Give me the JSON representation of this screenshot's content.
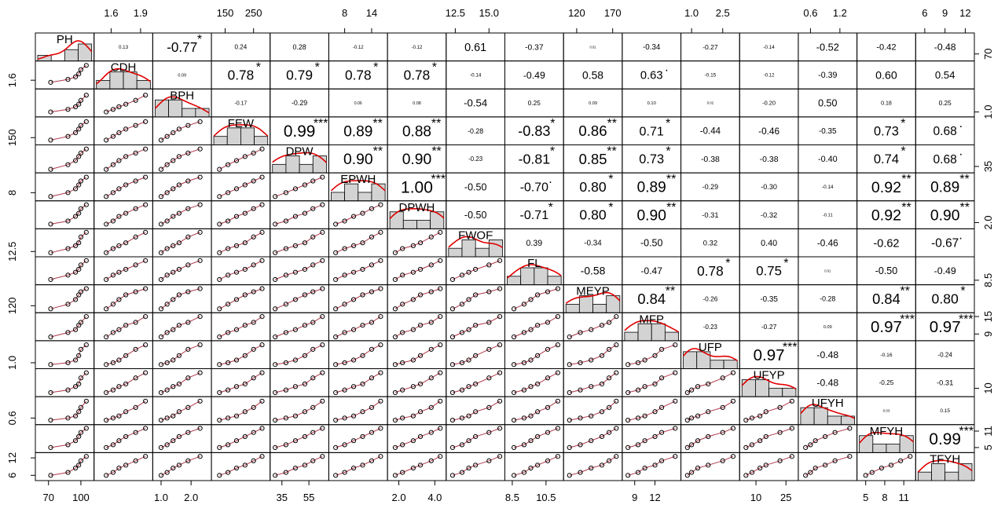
{
  "chart_data": {
    "type": "correlation-matrix",
    "variables": [
      {
        "name": "PH",
        "lim": [
          60,
          110
        ],
        "xticks": [
          70,
          100
        ],
        "yticks": [
          70
        ],
        "observations": [
          72,
          88,
          95,
          98,
          100,
          105
        ]
      },
      {
        "name": "CDH",
        "lim": [
          1.45,
          2.0
        ],
        "xticks": [
          1.6,
          1.9
        ],
        "yticks": [
          1.6
        ],
        "observations": [
          1.55,
          1.62,
          1.68,
          1.75,
          1.85,
          1.95
        ]
      },
      {
        "name": "BPH",
        "lim": [
          0.8,
          2.6
        ],
        "xticks": [
          {
            "value": 1,
            "label": "1.0"
          },
          {
            "value": 2,
            "label": "2.0"
          }
        ],
        "yticks": [
          {
            "value": 1,
            "label": "1.0"
          }
        ],
        "observations": [
          1.0,
          1.2,
          1.4,
          1.6,
          1.9,
          2.3
        ]
      },
      {
        "name": "FEW",
        "lim": [
          110,
          300
        ],
        "xticks": [
          150,
          250
        ],
        "yticks": [
          150
        ],
        "observations": [
          130,
          160,
          190,
          220,
          250,
          280
        ]
      },
      {
        "name": "DPW",
        "lim": [
          28,
          68
        ],
        "xticks": [
          35,
          55
        ],
        "yticks": [
          35
        ],
        "observations": [
          30,
          38,
          45,
          52,
          58,
          65
        ]
      },
      {
        "name": "EPWH",
        "lim": [
          5,
          17
        ],
        "xticks": [
          8,
          14
        ],
        "yticks": [
          8
        ],
        "observations": [
          6,
          8,
          10,
          12,
          14,
          16
        ]
      },
      {
        "name": "DPWH",
        "lim": [
          1.5,
          4.5
        ],
        "xticks": [
          {
            "value": 2,
            "label": "2.0"
          },
          {
            "value": 4,
            "label": "4.0"
          }
        ],
        "yticks": [
          {
            "value": 2,
            "label": "2.0"
          }
        ],
        "observations": [
          1.8,
          2.2,
          2.8,
          3.2,
          3.8,
          4.3
        ]
      },
      {
        "name": "FWOF",
        "lim": [
          12,
          16
        ],
        "xticks": [
          12.5,
          {
            "value": 15,
            "label": "15.0"
          }
        ],
        "yticks": [
          12.5
        ],
        "observations": [
          12.3,
          13.0,
          13.5,
          14.0,
          15.0,
          15.8
        ]
      },
      {
        "name": "FL",
        "lim": [
          8.2,
          11.4
        ],
        "xticks": [
          8.5,
          10.5
        ],
        "yticks": [
          8.5
        ],
        "observations": [
          8.6,
          9.2,
          9.6,
          10.0,
          10.6,
          11.2
        ]
      },
      {
        "name": "MEYP",
        "lim": [
          105,
          180
        ],
        "xticks": [
          120,
          170
        ],
        "yticks": [
          120
        ],
        "observations": [
          110,
          125,
          140,
          155,
          165,
          175
        ]
      },
      {
        "name": "MFP",
        "lim": [
          7.5,
          15.5
        ],
        "xticks": [
          9,
          12
        ],
        "yticks": [
          9,
          15
        ],
        "observations": [
          8,
          9.5,
          10.5,
          12,
          13,
          15
        ]
      },
      {
        "name": "UFP",
        "lim": [
          0.6,
          3.2
        ],
        "xticks": [
          {
            "value": 1,
            "label": "1.0"
          },
          2.5
        ],
        "yticks": [
          {
            "value": 1,
            "label": "1.0"
          }
        ],
        "observations": [
          0.8,
          1.0,
          1.3,
          1.8,
          2.5,
          3.0
        ]
      },
      {
        "name": "UFYP",
        "lim": [
          3,
          30
        ],
        "xticks": [
          10,
          25
        ],
        "yticks": [
          10
        ],
        "observations": [
          5,
          8,
          12,
          15,
          22,
          28
        ]
      },
      {
        "name": "UFYH",
        "lim": [
          0.4,
          1.5
        ],
        "xticks": [
          0.6,
          1.2
        ],
        "yticks": [
          0.6
        ],
        "observations": [
          0.5,
          0.6,
          0.7,
          0.9,
          1.1,
          1.4
        ]
      },
      {
        "name": "MFYH",
        "lim": [
          4,
          12.5
        ],
        "xticks": [
          5,
          8,
          11
        ],
        "yticks": [
          5,
          11
        ],
        "observations": [
          5,
          6,
          7.5,
          9,
          10.5,
          12
        ]
      },
      {
        "name": "TFYH",
        "lim": [
          5,
          13
        ],
        "xticks": [
          6,
          9,
          12
        ],
        "yticks": [
          6,
          12
        ],
        "observations": [
          6,
          7,
          8.5,
          9.5,
          11,
          12.5
        ]
      }
    ],
    "correlations": [
      {
        "values": [
          0.13,
          -0.77,
          0.24,
          0.28,
          -0.12,
          -0.12,
          0.61,
          -0.37,
          0.01,
          -0.34,
          -0.27,
          -0.14,
          -0.52,
          -0.42,
          -0.48
        ],
        "value_labels": [
          "0.13",
          "-0.77",
          "0.24",
          "0.28",
          "-0.12",
          "-0.12",
          "0.61",
          "-0.37",
          "0.01",
          "-0.34",
          "-0.27",
          "-0.14",
          "-0.52",
          "-0.42",
          "-0.48"
        ],
        "stars": [
          null,
          "*",
          null,
          null,
          null,
          null,
          null,
          null,
          null,
          null,
          null,
          null,
          null,
          null,
          null
        ]
      },
      {
        "values": [
          0.09,
          0.78,
          0.79,
          0.78,
          0.78,
          -0.14,
          -0.49,
          0.58,
          0.63,
          -0.15,
          -0.12,
          -0.39,
          0.6,
          0.54
        ],
        "value_labels": [
          "0.09",
          "0.78",
          "0.79",
          "0.78",
          "0.78",
          "-0.14",
          "-0.49",
          "0.58",
          "0.63",
          "-0.15",
          "-0.12",
          "-0.39",
          "0.60",
          "0.54"
        ],
        "stars": [
          null,
          "*",
          "*",
          "*",
          "*",
          null,
          null,
          null,
          ".",
          null,
          null,
          null,
          null,
          null
        ]
      },
      {
        "values": [
          -0.17,
          -0.29,
          0.06,
          0.08,
          -0.54,
          0.25,
          0.09,
          0.1,
          0.02,
          -0.2,
          0.5,
          0.18,
          0.25
        ],
        "value_labels": [
          "-0.17",
          "-0.29",
          "0.06",
          "0.08",
          "-0.54",
          "0.25",
          "0.09",
          "0.10",
          "0.02",
          "-0.20",
          "0.50",
          "0.18",
          "0.25"
        ],
        "stars": [
          null,
          null,
          null,
          null,
          null,
          null,
          null,
          null,
          null,
          null,
          null,
          null,
          null
        ]
      },
      {
        "values": [
          0.99,
          0.89,
          0.88,
          -0.28,
          -0.83,
          0.86,
          0.71,
          -0.44,
          -0.46,
          -0.35,
          0.73,
          0.68
        ],
        "value_labels": [
          "0.99",
          "0.89",
          "0.88",
          "-0.28",
          "-0.83",
          "0.86",
          "0.71",
          "-0.44",
          "-0.46",
          "-0.35",
          "0.73",
          "0.68"
        ],
        "stars": [
          "***",
          "**",
          "**",
          null,
          "*",
          "**",
          "*",
          null,
          null,
          null,
          "*",
          "."
        ]
      },
      {
        "values": [
          0.9,
          0.9,
          -0.23,
          -0.81,
          0.85,
          0.73,
          -0.38,
          -0.38,
          -0.4,
          0.74,
          0.68
        ],
        "value_labels": [
          "0.90",
          "0.90",
          "-0.23",
          "-0.81",
          "0.85",
          "0.73",
          "-0.38",
          "-0.38",
          "-0.40",
          "0.74",
          "0.68"
        ],
        "stars": [
          "**",
          "**",
          null,
          "*",
          "**",
          "*",
          null,
          null,
          null,
          "*",
          "."
        ]
      },
      {
        "values": [
          1,
          -0.5,
          -0.7,
          0.8,
          0.89,
          -0.29,
          -0.3,
          -0.14,
          0.92,
          0.89
        ],
        "value_labels": [
          "1.00",
          "-0.50",
          "-0.70",
          "0.80",
          "0.89",
          "-0.29",
          "-0.30",
          "-0.14",
          "0.92",
          "0.89"
        ],
        "stars": [
          "***",
          null,
          ".",
          "*",
          "**",
          null,
          null,
          null,
          "**",
          "**"
        ]
      },
      {
        "values": [
          -0.5,
          -0.71,
          0.8,
          0.9,
          -0.31,
          -0.32,
          -0.11,
          0.92,
          0.9
        ],
        "value_labels": [
          "-0.50",
          "-0.71",
          "0.80",
          "0.90",
          "-0.31",
          "-0.32",
          "-0.11",
          "0.92",
          "0.90"
        ],
        "stars": [
          null,
          "*",
          "*",
          "**",
          null,
          null,
          null,
          "**",
          "**"
        ]
      },
      {
        "values": [
          0.39,
          -0.34,
          -0.5,
          0.32,
          0.4,
          -0.46,
          -0.62,
          -0.67
        ],
        "value_labels": [
          "0.39",
          "-0.34",
          "-0.50",
          "0.32",
          "0.40",
          "-0.46",
          "-0.62",
          "-0.67"
        ],
        "stars": [
          null,
          null,
          null,
          null,
          null,
          null,
          null,
          "."
        ]
      },
      {
        "values": [
          -0.58,
          -0.47,
          0.78,
          0.75,
          0.01,
          -0.5,
          -0.49
        ],
        "value_labels": [
          "-0.58",
          "-0.47",
          "0.78",
          "0.75",
          "0.01",
          "-0.50",
          "-0.49"
        ],
        "stars": [
          null,
          null,
          "*",
          "*",
          null,
          null,
          null
        ]
      },
      {
        "values": [
          0.84,
          -0.26,
          -0.35,
          -0.28,
          0.84,
          0.8
        ],
        "value_labels": [
          "0.84",
          "-0.26",
          "-0.35",
          "-0.28",
          "0.84",
          "0.80"
        ],
        "stars": [
          "**",
          null,
          null,
          null,
          "**",
          "*"
        ]
      },
      {
        "values": [
          -0.23,
          -0.27,
          0.09,
          0.97,
          0.97
        ],
        "value_labels": [
          "-0.23",
          "-0.27",
          "0.09",
          "0.97",
          "0.97"
        ],
        "stars": [
          null,
          null,
          null,
          "***",
          "***"
        ]
      },
      {
        "values": [
          0.97,
          -0.48,
          -0.16,
          -0.24
        ],
        "value_labels": [
          "0.97",
          "-0.48",
          "-0.16",
          "-0.24"
        ],
        "stars": [
          "***",
          null,
          null,
          null
        ]
      },
      {
        "values": [
          -0.48,
          -0.25,
          -0.31
        ],
        "value_labels": [
          "-0.48",
          "-0.25",
          "-0.31"
        ],
        "stars": [
          null,
          null,
          null
        ]
      },
      {
        "values": [
          0.03,
          0.15
        ],
        "value_labels": [
          "0.03",
          "0.15"
        ],
        "stars": [
          null,
          null
        ]
      },
      {
        "values": [
          0.99
        ],
        "value_labels": [
          "0.99"
        ],
        "stars": [
          "***"
        ]
      }
    ],
    "histogram_color": "#d3d3d3",
    "density_color": "#e00000",
    "smooth_color": "#b03a4a",
    "star_color": "#f0506e"
  }
}
